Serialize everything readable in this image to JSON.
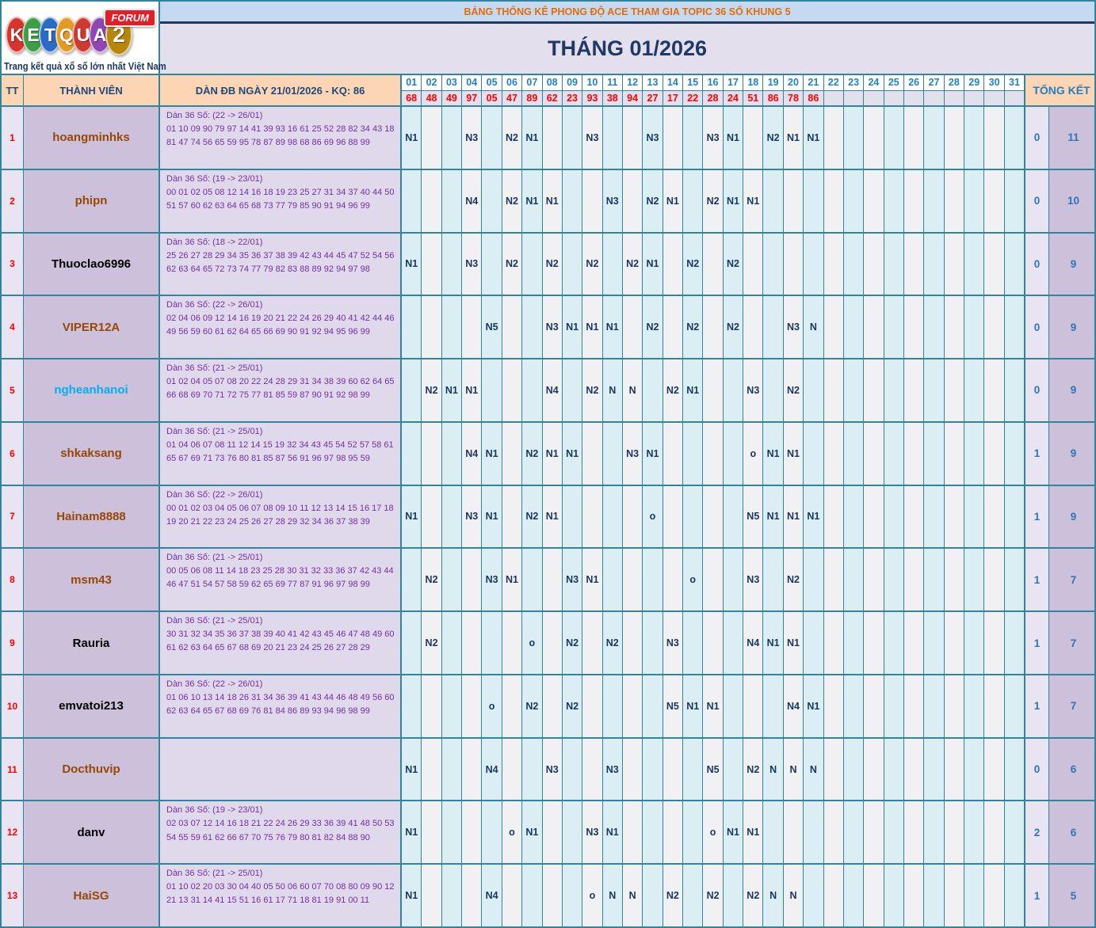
{
  "logo": {
    "brand_letters": [
      {
        "ch": "K",
        "color": "#D6342C"
      },
      {
        "ch": "E",
        "color": "#3C9E45"
      },
      {
        "ch": "T",
        "color": "#2A6BC8"
      },
      {
        "ch": "Q",
        "color": "#E39B26"
      },
      {
        "ch": "U",
        "color": "#CE3A30"
      },
      {
        "ch": "A",
        "color": "#8F47B3"
      },
      {
        "ch": "2",
        "color": "#B8860B"
      }
    ],
    "badge": "FORUM",
    "tagline": "Trang kết quả xổ số lớn nhất Việt Nam"
  },
  "banner": {
    "text": "BẢNG THỐNG KÊ PHONG ĐỘ ACE THAM GIA TOPIC 36 SỐ KHUNG 5"
  },
  "month_title": "THÁNG 01/2026",
  "table": {
    "headers": {
      "tt": "TT",
      "member": "THÀNH VIÊN",
      "dan": "DÀN ĐB NGÀY 21/01/2026 - KQ: 86",
      "total": "TỔNG KẾT"
    },
    "days": [
      "01",
      "02",
      "03",
      "04",
      "05",
      "06",
      "07",
      "08",
      "09",
      "10",
      "11",
      "12",
      "13",
      "14",
      "15",
      "16",
      "17",
      "18",
      "19",
      "20",
      "21",
      "22",
      "23",
      "24",
      "25",
      "26",
      "27",
      "28",
      "29",
      "30",
      "31"
    ],
    "results": [
      "68",
      "48",
      "49",
      "97",
      "05",
      "47",
      "89",
      "62",
      "23",
      "93",
      "38",
      "94",
      "27",
      "17",
      "22",
      "28",
      "24",
      "51",
      "86",
      "78",
      "86",
      "",
      "",
      "",
      "",
      "",
      "",
      "",
      "",
      "",
      ""
    ],
    "rows": [
      {
        "tt": "1",
        "member": "hoangminhks",
        "member_color": "#974806",
        "dan_title": "Dàn 36 Số: (22 -> 26/01)",
        "dan_numbers": "01 10 09 90 79 97 14 41 39 93 16 61 25 52 28 82 34 43 18 81 47 74 56 65 59 95 78 87 89 98 68 86 69 96 88 99",
        "cells": [
          "N1",
          "",
          "",
          "N3",
          "",
          "N2",
          "N1",
          "",
          "",
          "N3",
          "",
          "",
          "N3",
          "",
          "",
          "N3",
          "N1",
          "",
          "N2",
          "N1",
          "N1",
          "",
          "",
          "",
          "",
          "",
          "",
          "",
          "",
          "",
          ""
        ],
        "total1": "0",
        "total2": "11"
      },
      {
        "tt": "2",
        "member": "phipn",
        "member_color": "#974806",
        "dan_title": "Dàn 36 Số: (19 -> 23/01)",
        "dan_numbers": "00 01 02 05 08 12 14 16 18 19 23 25 27 31 34 37 40 44 50 51 57 60 62 63 64 65 68 73 77 79 85 90 91 94 96 99",
        "cells": [
          "",
          "",
          "",
          "N4",
          "",
          "N2",
          "N1",
          "N1",
          "",
          "",
          "N3",
          "",
          "N2",
          "N1",
          "",
          "N2",
          "N1",
          "N1",
          "",
          "",
          "",
          "",
          "",
          "",
          "",
          "",
          "",
          "",
          "",
          "",
          ""
        ],
        "total1": "0",
        "total2": "10"
      },
      {
        "tt": "3",
        "member": "Thuoclao6996",
        "member_color": "#000000",
        "dan_title": "Dàn 36 Số: (18 -> 22/01)",
        "dan_numbers": "25 26 27 28 29 34 35 36 37 38 39 42 43 44 45 47 52 54 56 62 63 64 65 72 73 74 77 79 82 83 88 89 92 94 97 98",
        "cells": [
          "N1",
          "",
          "",
          "N3",
          "",
          "N2",
          "",
          "N2",
          "",
          "N2",
          "",
          "N2",
          "N1",
          "",
          "N2",
          "",
          "N2",
          "",
          "",
          "",
          "",
          "",
          "",
          "",
          "",
          "",
          "",
          "",
          "",
          "",
          ""
        ],
        "total1": "0",
        "total2": "9"
      },
      {
        "tt": "4",
        "member": "VIPER12A",
        "member_color": "#974806",
        "dan_title": "Dàn 36 Số: (22 -> 26/01)",
        "dan_numbers": "02 04 06 09 12 14 16 19 20 21 22 24 26 29 40 41 42 44 46 49 56 59 60 61 62 64 65 66 69 90 91 92 94 95 96 99",
        "cells": [
          "",
          "",
          "",
          "",
          "N5",
          "",
          "",
          "N3",
          "N1",
          "N1",
          "N1",
          "",
          "N2",
          "",
          "N2",
          "",
          "N2",
          "",
          "",
          "N3",
          "N",
          "",
          "",
          "",
          "",
          "",
          "",
          "",
          "",
          "",
          ""
        ],
        "total1": "0",
        "total2": "9"
      },
      {
        "tt": "5",
        "member": "ngheanhanoi",
        "member_color": "#00B0F0",
        "dan_title": "Dàn 36 Số: (21 -> 25/01)",
        "dan_numbers": "01 02 04 05 07 08 20 22 24 28 29 31 34 38 39 60 62 64 65 66 68 69 70 71 72 75 77 81 85 59 87 90 91 92 98 99",
        "cells": [
          "",
          "N2",
          "N1",
          "N1",
          "",
          "",
          "",
          "N4",
          "",
          "N2",
          "N",
          "N",
          "",
          "N2",
          "N1",
          "",
          "",
          "N3",
          "",
          "N2",
          "",
          "",
          "",
          "",
          "",
          "",
          "",
          "",
          "",
          "",
          ""
        ],
        "total1": "0",
        "total2": "9"
      },
      {
        "tt": "6",
        "member": "shkaksang",
        "member_color": "#974806",
        "dan_title": "Dàn 36 Số: (21 -> 25/01)",
        "dan_numbers": "01 04 06 07 08 11 12 14 15 19 32 34 43 45 54 52 57 58 61 65 67 69 71 73 76 80 81 85 87 56 91 96 97 98 95 59",
        "cells": [
          "",
          "",
          "",
          "N4",
          "N1",
          "",
          "N2",
          "N1",
          "N1",
          "",
          "",
          "N3",
          "N1",
          "",
          "",
          "",
          "",
          "o",
          "N1",
          "N1",
          "",
          "",
          "",
          "",
          "",
          "",
          "",
          "",
          "",
          "",
          ""
        ],
        "total1": "1",
        "total2": "9"
      },
      {
        "tt": "7",
        "member": "Hainam8888",
        "member_color": "#974806",
        "dan_title": "Dàn 36 Số: (22 -> 26/01)",
        "dan_numbers": "00 01 02 03 04 05 06 07 08 09 10 11 12 13 14 15 16 17 18 19 20 21 22 23 24 25 26 27 28 29 32 34 36 37 38 39",
        "cells": [
          "N1",
          "",
          "",
          "N3",
          "N1",
          "",
          "N2",
          "N1",
          "",
          "",
          "",
          "",
          "o",
          "",
          "",
          "",
          "",
          "N5",
          "N1",
          "N1",
          "N1",
          "",
          "",
          "",
          "",
          "",
          "",
          "",
          "",
          "",
          ""
        ],
        "total1": "1",
        "total2": "9"
      },
      {
        "tt": "8",
        "member": "msm43",
        "member_color": "#974806",
        "dan_title": "Dàn 36 Số: (21 -> 25/01)",
        "dan_numbers": "00 05 06 08 11 14 18 23 25 28 30 31 32 33 36 37 42 43 44 46 47 51 54 57 58 59 62 65 69 77 87 91 96 97 98 99",
        "cells": [
          "",
          "N2",
          "",
          "",
          "N3",
          "N1",
          "",
          "",
          "N3",
          "N1",
          "",
          "",
          "",
          "",
          "o",
          "",
          "",
          "N3",
          "",
          "N2",
          "",
          "",
          "",
          "",
          "",
          "",
          "",
          "",
          "",
          "",
          ""
        ],
        "total1": "1",
        "total2": "7"
      },
      {
        "tt": "9",
        "member": "Rauria",
        "member_color": "#000000",
        "dan_title": "Dàn 36 Số: (21 -> 25/01)",
        "dan_numbers": "30 31 32 34 35 36 37 38 39 40 41 42 43 45 46 47 48 49 60 61 62 63 64 65 67 68 69 20 21 23 24 25 26 27 28 29",
        "cells": [
          "",
          "N2",
          "",
          "",
          "",
          "",
          "o",
          "",
          "N2",
          "",
          "N2",
          "",
          "",
          "N3",
          "",
          "",
          "",
          "N4",
          "N1",
          "N1",
          "",
          "",
          "",
          "",
          "",
          "",
          "",
          "",
          "",
          "",
          ""
        ],
        "total1": "1",
        "total2": "7"
      },
      {
        "tt": "10",
        "member": "emvatoi213",
        "member_color": "#000000",
        "dan_title": "Dàn 36 Số: (22 -> 26/01)",
        "dan_numbers": "01 06 10 13 14 18 26 31 34 36 39 41 43 44 46 48 49 56 60 62 63 64 65 67 68 69 76 81 84 86 89 93 94 96 98 99",
        "cells": [
          "",
          "",
          "",
          "",
          "o",
          "",
          "N2",
          "",
          "N2",
          "",
          "",
          "",
          "",
          "N5",
          "N1",
          "N1",
          "",
          "",
          "",
          "N4",
          "N1",
          "",
          "",
          "",
          "",
          "",
          "",
          "",
          "",
          "",
          ""
        ],
        "total1": "1",
        "total2": "7"
      },
      {
        "tt": "11",
        "member": "Docthuvip",
        "member_color": "#974806",
        "dan_title": "",
        "dan_numbers": "",
        "cells": [
          "N1",
          "",
          "",
          "",
          "N4",
          "",
          "",
          "N3",
          "",
          "",
          "N3",
          "",
          "",
          "",
          "",
          "N5",
          "",
          "N2",
          "N",
          "N",
          "N",
          "",
          "",
          "",
          "",
          "",
          "",
          "",
          "",
          "",
          ""
        ],
        "total1": "0",
        "total2": "6"
      },
      {
        "tt": "12",
        "member": "danv",
        "member_color": "#000000",
        "dan_title": "Dàn 36 Số: (19 -> 23/01)",
        "dan_numbers": "02 03 07 12 14 16 18 21 22 24 26 29 33 36 39 41 48 50 53 54 55 59 61 62 66 67 70 75 76 79 80 81 82 84 88 90",
        "cells": [
          "N1",
          "",
          "",
          "",
          "",
          "o",
          "N1",
          "",
          "",
          "N3",
          "N1",
          "",
          "",
          "",
          "",
          "o",
          "N1",
          "N1",
          "",
          "",
          "",
          "",
          "",
          "",
          "",
          "",
          "",
          "",
          "",
          "",
          ""
        ],
        "total1": "2",
        "total2": "6"
      },
      {
        "tt": "13",
        "member": "HaiSG",
        "member_color": "#974806",
        "dan_title": "Dàn 36 Số: (21 -> 25/01)",
        "dan_numbers": "01 10 02 20 03 30 04 40 05 50 06 60 07 70 08 80 09 90 12 21 13 31 14 41 15 51 16 61 17 71 18 81 19 91 00 11",
        "cells": [
          "N1",
          "",
          "",
          "",
          "N4",
          "",
          "",
          "",
          "",
          "o",
          "N",
          "N",
          "",
          "N2",
          "",
          "N2",
          "",
          "N2",
          "N",
          "N",
          "",
          "",
          "",
          "",
          "",
          "",
          "",
          "",
          "",
          "",
          ""
        ],
        "total1": "1",
        "total2": "5"
      }
    ]
  }
}
